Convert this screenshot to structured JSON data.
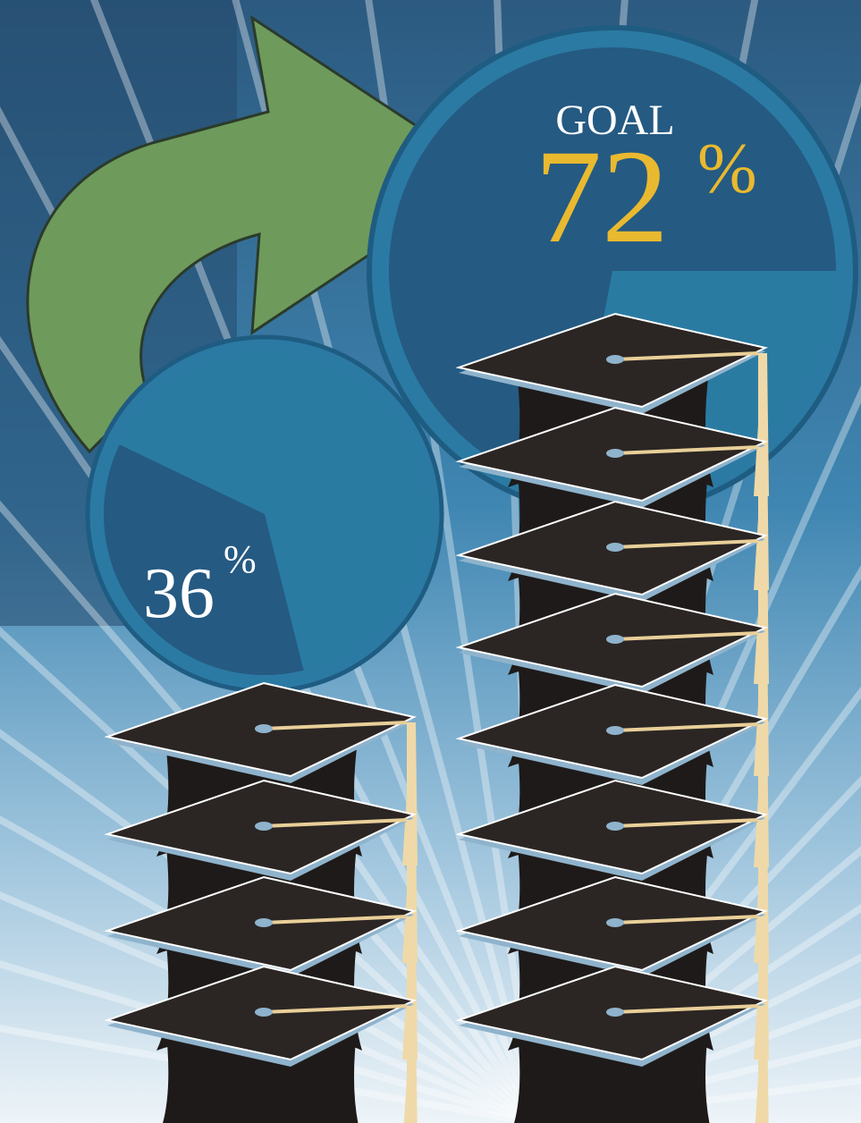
{
  "goal_pie": {
    "label": "GOAL",
    "value": 72,
    "value_label": "72",
    "unit": "%"
  },
  "current_pie": {
    "value": 36,
    "value_label": "36",
    "unit": "%"
  }
}
